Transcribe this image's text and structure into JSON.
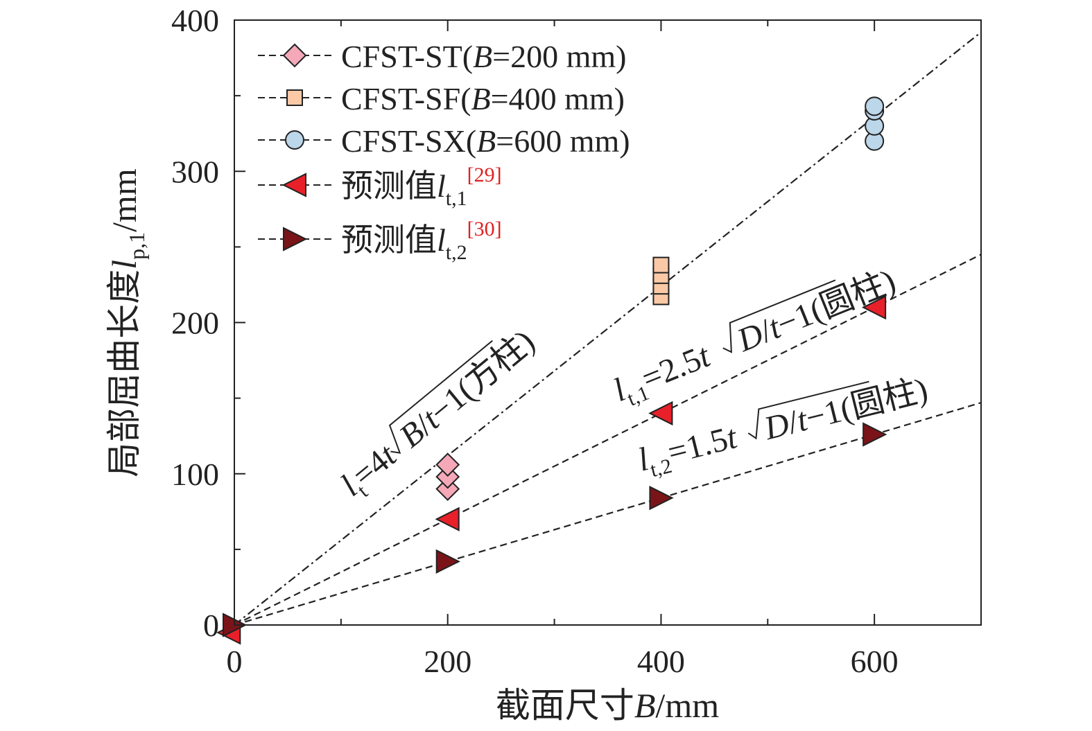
{
  "chart_data": {
    "type": "scatter",
    "xlabel": {
      "cn": "截面尺寸",
      "sym": "B",
      "unit": "/mm"
    },
    "ylabel": {
      "cn": "局部屈曲长度",
      "sym": "l",
      "sub": "p,1",
      "unit": "/mm"
    },
    "xlim": [
      0,
      700
    ],
    "ylim": [
      0,
      400
    ],
    "x_ticks": [
      "0",
      "200",
      "400",
      "600"
    ],
    "y_ticks": [
      "0",
      "100",
      "200",
      "300",
      "400"
    ],
    "grid": false,
    "legend_position": "top-left",
    "series": [
      {
        "legend": {
          "prefix": "CFST-ST(",
          "sym": "B",
          "suffix": "=200 mm)"
        },
        "marker": "diamond",
        "color": "#f4a8b8",
        "points": [
          [
            200,
            90
          ],
          [
            200,
            98
          ],
          [
            200,
            106
          ]
        ]
      },
      {
        "legend": {
          "prefix": "CFST-SF(",
          "sym": "B",
          "suffix": "=400 mm)"
        },
        "marker": "square",
        "color": "#fbc9a6",
        "points": [
          [
            400,
            217
          ],
          [
            400,
            224
          ],
          [
            400,
            231
          ],
          [
            400,
            238
          ]
        ]
      },
      {
        "legend": {
          "prefix": "CFST-SX(",
          "sym": "B",
          "suffix": "=600 mm)"
        },
        "marker": "circle",
        "color": "#bcd6ea",
        "points": [
          [
            600,
            320
          ],
          [
            600,
            330
          ],
          [
            600,
            340
          ],
          [
            600,
            343
          ]
        ]
      },
      {
        "legend": {
          "prefix": "预测值",
          "sym": "l",
          "sub": "t,1",
          "ref": "[29]"
        },
        "marker": "triangle-left",
        "color": "#e8202a",
        "points": [
          [
            -5,
            -5
          ],
          [
            200,
            70
          ],
          [
            400,
            140
          ],
          [
            600,
            210
          ]
        ]
      },
      {
        "legend": {
          "prefix": "预测值",
          "sym": "l",
          "sub": "t,2",
          "ref": "[30]"
        },
        "marker": "triangle-right",
        "color": "#7a1418",
        "points": [
          [
            0,
            0
          ],
          [
            200,
            42
          ],
          [
            400,
            84
          ],
          [
            600,
            126
          ]
        ]
      }
    ],
    "fit_lines": [
      {
        "style": "dash-dot",
        "slope": 0.56
      },
      {
        "style": "dashed",
        "slope": 0.35
      },
      {
        "style": "dashed",
        "slope": 0.21
      }
    ],
    "annotations": [
      {
        "parts": [
          "l",
          "t",
          "=4",
          "t",
          "B",
          "/",
          "t",
          "−1(方柱)"
        ]
      },
      {
        "parts": [
          "l",
          "t,1",
          "=2.5",
          "t",
          "D",
          "/",
          "t",
          "−1(圆柱)"
        ]
      },
      {
        "parts": [
          "l",
          "t,2",
          "=1.5",
          "t",
          "D",
          "/",
          "t",
          "−1(圆柱)"
        ]
      }
    ]
  }
}
